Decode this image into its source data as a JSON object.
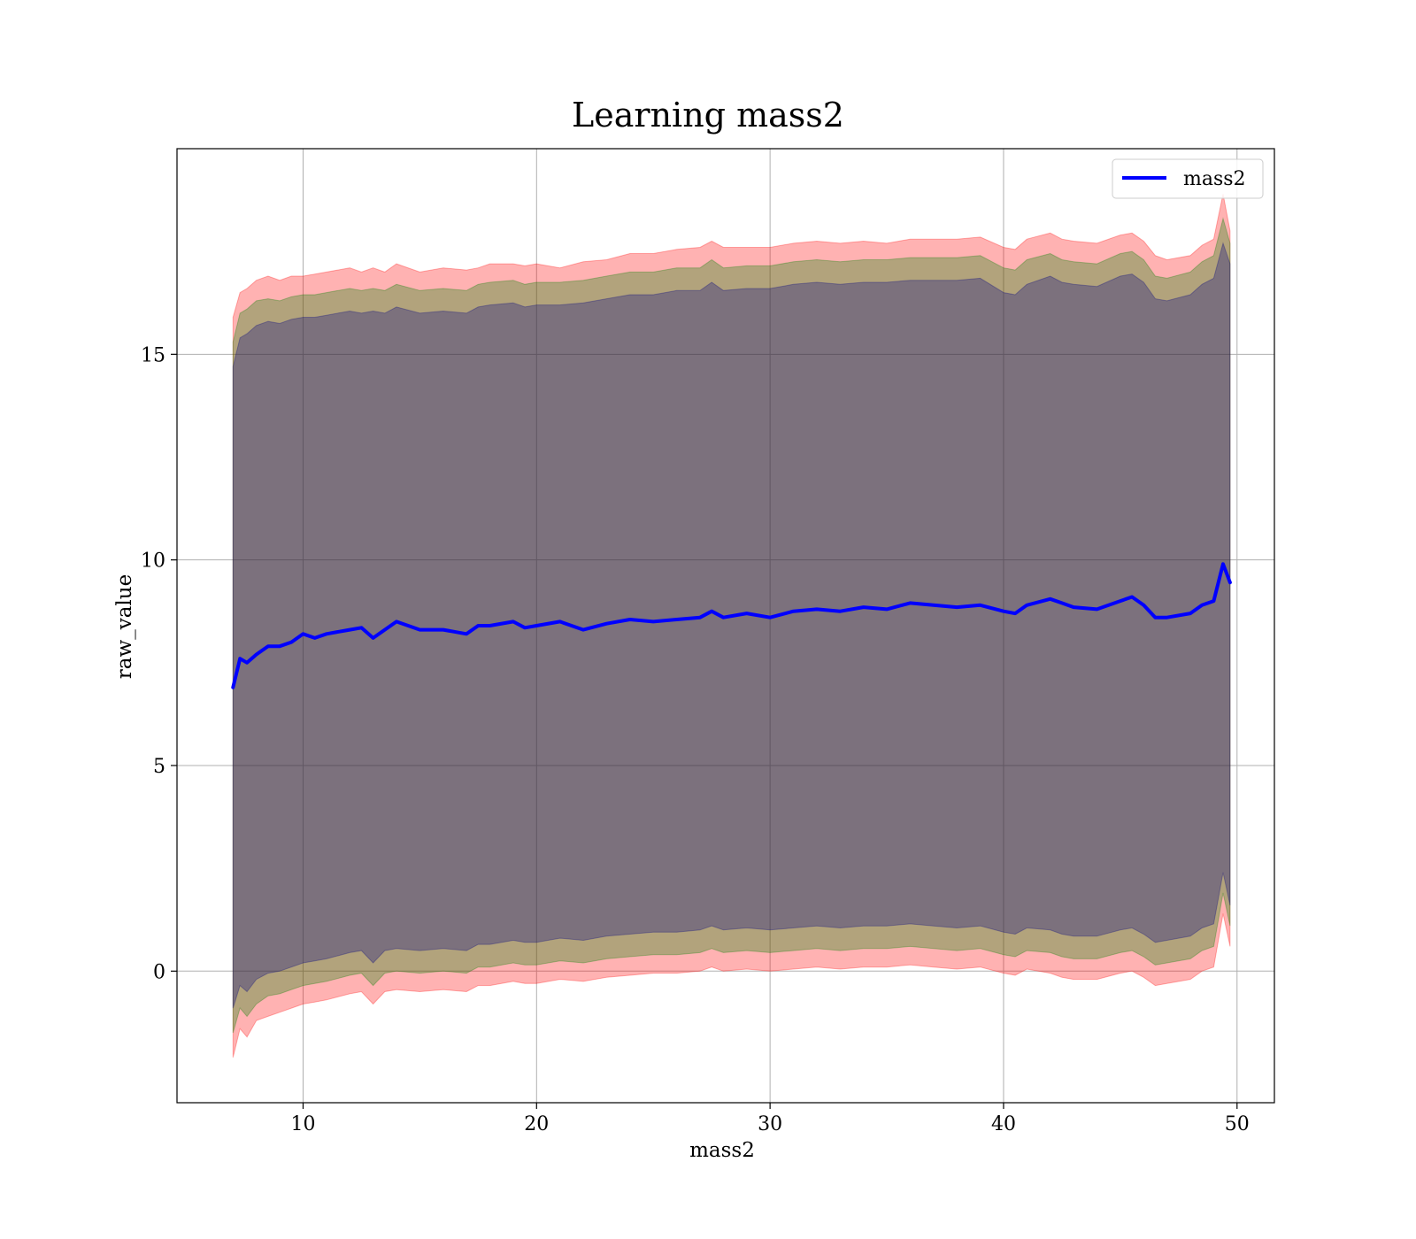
{
  "chart_data": {
    "type": "line",
    "title": "Learning mass2",
    "xlabel": "mass2",
    "ylabel": "raw_value",
    "xlim": [
      4.6,
      51.6
    ],
    "ylim": [
      -3.2,
      20.0
    ],
    "xticks": [
      10,
      20,
      30,
      40,
      50
    ],
    "yticks": [
      0,
      5,
      10,
      15
    ],
    "grid": true,
    "legend_position": "top-right",
    "series": [
      {
        "name": "mass2",
        "color": "#0000ff",
        "x": [
          7.0,
          7.3,
          7.6,
          8.0,
          8.5,
          9.0,
          9.5,
          10.0,
          10.5,
          11.0,
          12.0,
          12.5,
          13.0,
          13.5,
          14.0,
          15.0,
          16.0,
          17.0,
          17.5,
          18.0,
          19.0,
          19.5,
          20.0,
          21.0,
          22.0,
          23.0,
          24.0,
          25.0,
          26.0,
          27.0,
          27.5,
          28.0,
          29.0,
          30.0,
          31.0,
          32.0,
          33.0,
          34.0,
          35.0,
          36.0,
          37.0,
          38.0,
          39.0,
          40.0,
          40.5,
          41.0,
          42.0,
          42.5,
          43.0,
          44.0,
          45.0,
          45.5,
          46.0,
          46.5,
          47.0,
          48.0,
          48.5,
          49.0,
          49.4,
          49.7
        ],
        "y": [
          6.9,
          7.6,
          7.5,
          7.7,
          7.9,
          7.9,
          8.0,
          8.2,
          8.1,
          8.2,
          8.3,
          8.35,
          8.1,
          8.3,
          8.5,
          8.3,
          8.3,
          8.2,
          8.4,
          8.4,
          8.5,
          8.35,
          8.4,
          8.5,
          8.3,
          8.45,
          8.55,
          8.5,
          8.55,
          8.6,
          8.75,
          8.6,
          8.7,
          8.6,
          8.75,
          8.8,
          8.75,
          8.85,
          8.8,
          8.95,
          8.9,
          8.85,
          8.9,
          8.75,
          8.7,
          8.9,
          9.05,
          8.95,
          8.85,
          8.8,
          9.0,
          9.1,
          8.9,
          8.6,
          8.6,
          8.7,
          8.9,
          9.0,
          9.9,
          9.45
        ]
      }
    ],
    "bands": [
      {
        "color": "#ff0000",
        "opacity": 0.3,
        "upper": [
          15.9,
          16.5,
          16.6,
          16.8,
          16.9,
          16.8,
          16.9,
          16.9,
          16.95,
          17.0,
          17.1,
          17.0,
          17.1,
          17.0,
          17.2,
          17.0,
          17.1,
          17.05,
          17.1,
          17.2,
          17.2,
          17.15,
          17.2,
          17.1,
          17.25,
          17.3,
          17.45,
          17.45,
          17.55,
          17.6,
          17.75,
          17.6,
          17.6,
          17.6,
          17.7,
          17.75,
          17.7,
          17.75,
          17.7,
          17.8,
          17.8,
          17.8,
          17.85,
          17.6,
          17.55,
          17.8,
          17.95,
          17.8,
          17.75,
          17.7,
          17.9,
          17.95,
          17.75,
          17.4,
          17.3,
          17.4,
          17.65,
          17.8,
          18.9,
          18.0
        ],
        "lower": [
          -2.1,
          -1.4,
          -1.6,
          -1.2,
          -1.1,
          -1.0,
          -0.9,
          -0.8,
          -0.75,
          -0.7,
          -0.55,
          -0.5,
          -0.8,
          -0.5,
          -0.45,
          -0.5,
          -0.45,
          -0.5,
          -0.35,
          -0.35,
          -0.25,
          -0.3,
          -0.3,
          -0.2,
          -0.25,
          -0.15,
          -0.1,
          -0.05,
          -0.05,
          0.0,
          0.1,
          0.0,
          0.05,
          0.0,
          0.05,
          0.1,
          0.05,
          0.1,
          0.1,
          0.15,
          0.1,
          0.05,
          0.1,
          -0.05,
          -0.1,
          0.05,
          -0.05,
          -0.15,
          -0.2,
          -0.2,
          -0.05,
          0.0,
          -0.15,
          -0.35,
          -0.3,
          -0.2,
          0.0,
          0.1,
          1.4,
          0.6
        ]
      },
      {
        "color": "#008000",
        "opacity": 0.3,
        "upper": [
          15.3,
          16.0,
          16.1,
          16.3,
          16.35,
          16.3,
          16.4,
          16.45,
          16.45,
          16.5,
          16.6,
          16.55,
          16.6,
          16.55,
          16.7,
          16.55,
          16.6,
          16.55,
          16.7,
          16.75,
          16.8,
          16.7,
          16.75,
          16.75,
          16.8,
          16.9,
          17.0,
          17.0,
          17.1,
          17.1,
          17.3,
          17.1,
          17.15,
          17.15,
          17.25,
          17.3,
          17.25,
          17.3,
          17.3,
          17.35,
          17.35,
          17.35,
          17.4,
          17.1,
          17.05,
          17.3,
          17.45,
          17.3,
          17.25,
          17.2,
          17.45,
          17.5,
          17.3,
          16.9,
          16.85,
          17.0,
          17.25,
          17.4,
          18.3,
          17.7
        ],
        "lower": [
          -1.5,
          -0.9,
          -1.1,
          -0.8,
          -0.6,
          -0.55,
          -0.45,
          -0.35,
          -0.3,
          -0.25,
          -0.1,
          -0.05,
          -0.35,
          -0.05,
          0.0,
          -0.05,
          0.0,
          -0.05,
          0.1,
          0.1,
          0.2,
          0.15,
          0.15,
          0.25,
          0.2,
          0.3,
          0.35,
          0.4,
          0.4,
          0.45,
          0.55,
          0.45,
          0.5,
          0.45,
          0.5,
          0.55,
          0.5,
          0.55,
          0.55,
          0.6,
          0.55,
          0.5,
          0.55,
          0.4,
          0.35,
          0.5,
          0.45,
          0.35,
          0.3,
          0.3,
          0.45,
          0.5,
          0.35,
          0.15,
          0.2,
          0.3,
          0.5,
          0.6,
          1.9,
          1.1
        ]
      },
      {
        "color": "#000080",
        "opacity": 0.3,
        "upper": [
          14.7,
          15.4,
          15.5,
          15.7,
          15.8,
          15.75,
          15.85,
          15.9,
          15.9,
          15.95,
          16.05,
          16.0,
          16.05,
          16.0,
          16.15,
          16.0,
          16.05,
          16.0,
          16.15,
          16.2,
          16.25,
          16.15,
          16.2,
          16.2,
          16.25,
          16.35,
          16.45,
          16.45,
          16.55,
          16.55,
          16.75,
          16.55,
          16.6,
          16.6,
          16.7,
          16.75,
          16.7,
          16.75,
          16.75,
          16.8,
          16.8,
          16.8,
          16.85,
          16.5,
          16.45,
          16.7,
          16.9,
          16.75,
          16.7,
          16.65,
          16.9,
          16.95,
          16.75,
          16.35,
          16.3,
          16.45,
          16.7,
          16.85,
          17.7,
          17.2
        ],
        "lower": [
          -0.9,
          -0.35,
          -0.5,
          -0.2,
          -0.05,
          0.0,
          0.1,
          0.2,
          0.25,
          0.3,
          0.45,
          0.5,
          0.2,
          0.5,
          0.55,
          0.5,
          0.55,
          0.5,
          0.65,
          0.65,
          0.75,
          0.7,
          0.7,
          0.8,
          0.75,
          0.85,
          0.9,
          0.95,
          0.95,
          1.0,
          1.1,
          1.0,
          1.05,
          1.0,
          1.05,
          1.1,
          1.05,
          1.1,
          1.1,
          1.15,
          1.1,
          1.05,
          1.1,
          0.95,
          0.9,
          1.05,
          1.0,
          0.9,
          0.85,
          0.85,
          1.0,
          1.05,
          0.9,
          0.7,
          0.75,
          0.85,
          1.05,
          1.15,
          2.4,
          1.6
        ]
      }
    ]
  }
}
